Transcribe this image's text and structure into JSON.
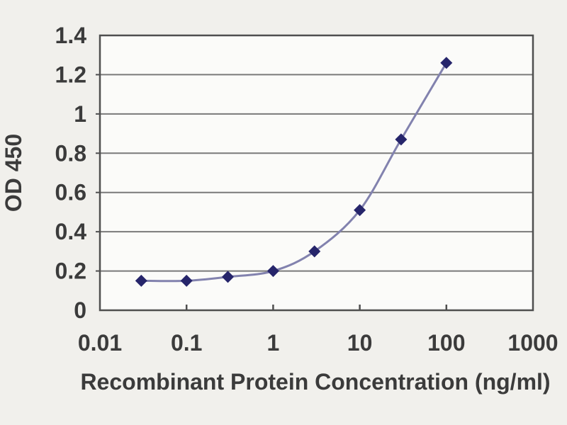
{
  "figure": {
    "background_color": "#f1f0ec",
    "plot_background_color": "#fbfbf9"
  },
  "chart_data": {
    "type": "line",
    "title": "",
    "xlabel": "Recombinant Protein Concentration (ng/ml)",
    "ylabel": "OD 450",
    "x_scale": "log",
    "x": [
      0.03,
      0.1,
      0.3,
      1,
      3,
      10,
      30,
      100
    ],
    "y": [
      0.15,
      0.15,
      0.17,
      0.2,
      0.3,
      0.51,
      0.87,
      1.26
    ],
    "xlim": [
      0.01,
      1000
    ],
    "ylim": [
      0,
      1.4
    ],
    "x_tick_labels": [
      "0.01",
      "0.1",
      "1",
      "10",
      "100",
      "1000"
    ],
    "y_tick_labels": [
      "0",
      "0.2",
      "0.4",
      "0.6",
      "0.8",
      "1",
      "1.2",
      "1.4"
    ],
    "grid": "horizontal",
    "legend": "none",
    "marker": "diamond",
    "line_smoothing": true,
    "style": {
      "line_color": "#8282ae",
      "marker_color": "#26256b",
      "axis_color": "#4f4f4f",
      "grid_color": "#7a7a7a",
      "text_color": "#3b3b3b",
      "plot_bg": "#fbfbf9"
    }
  }
}
